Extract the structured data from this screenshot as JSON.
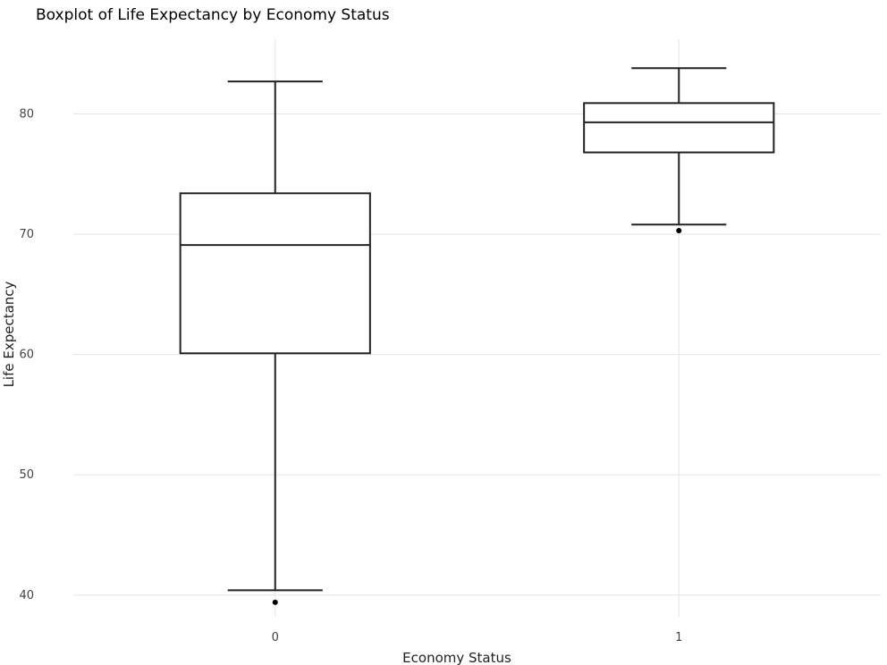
{
  "chart_data": {
    "type": "boxplot",
    "title": "Boxplot of Life Expectancy by Economy Status",
    "xlabel": "Economy Status",
    "ylabel": "Life Expectancy",
    "categories": [
      "0",
      "1"
    ],
    "yticks": [
      40,
      50,
      60,
      70,
      80
    ],
    "ylim": [
      38.2,
      86.2
    ],
    "grid": true,
    "boxes": [
      {
        "category": "0",
        "whisker_low": 40.4,
        "q1": 60.1,
        "median": 69.1,
        "q3": 73.4,
        "whisker_high": 82.7,
        "outliers": [
          39.4
        ]
      },
      {
        "category": "1",
        "whisker_low": 70.8,
        "q1": 76.8,
        "median": 79.3,
        "q3": 80.9,
        "whisker_high": 83.8,
        "outliers": [
          70.3
        ]
      }
    ]
  },
  "colors": {
    "box_stroke": "#222222",
    "grid": "#e6e6e6",
    "background": "#ffffff"
  }
}
